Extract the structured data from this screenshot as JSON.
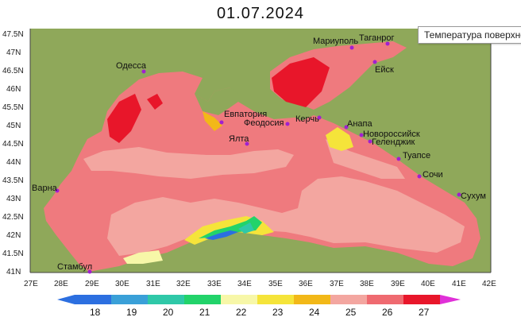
{
  "title": "01.07.2024",
  "tooltip": "Температура поверхности",
  "latitudes": [
    "47.5N",
    "47N",
    "46.5N",
    "46N",
    "45.5N",
    "45N",
    "44.5N",
    "44N",
    "43.5N",
    "43N",
    "42.5N",
    "42N",
    "41.5N",
    "41N"
  ],
  "longitudes": [
    "27E",
    "28E",
    "29E",
    "30E",
    "31E",
    "32E",
    "33E",
    "34E",
    "35E",
    "36E",
    "37E",
    "38E",
    "39E",
    "40E",
    "41E",
    "42E"
  ],
  "cities": [
    {
      "name": "Одесса"
    },
    {
      "name": "Мариуполь"
    },
    {
      "name": "Таганрог"
    },
    {
      "name": "Ейск"
    },
    {
      "name": "Евпатория"
    },
    {
      "name": "Феодосия"
    },
    {
      "name": "Керчь"
    },
    {
      "name": "Ялта"
    },
    {
      "name": "Анапа"
    },
    {
      "name": "Новороссийск"
    },
    {
      "name": "Геленджик"
    },
    {
      "name": "Туапсе"
    },
    {
      "name": "Сочи"
    },
    {
      "name": "Сухум"
    },
    {
      "name": "Варна"
    },
    {
      "name": "Стамбул"
    }
  ],
  "legend": {
    "labels": [
      "18",
      "19",
      "20",
      "21",
      "22",
      "23",
      "24",
      "25",
      "26",
      "27"
    ],
    "colors": [
      "#2c6fe0",
      "#3aa0d8",
      "#2fc8a8",
      "#22d36a",
      "#f7f7a8",
      "#f5e43a",
      "#f2b818",
      "#f3a6a0",
      "#ef6a70",
      "#e8162a",
      "#e030d8"
    ]
  },
  "colors": {
    "land": "#8fa85a",
    "sea": "#ef7a7e"
  }
}
